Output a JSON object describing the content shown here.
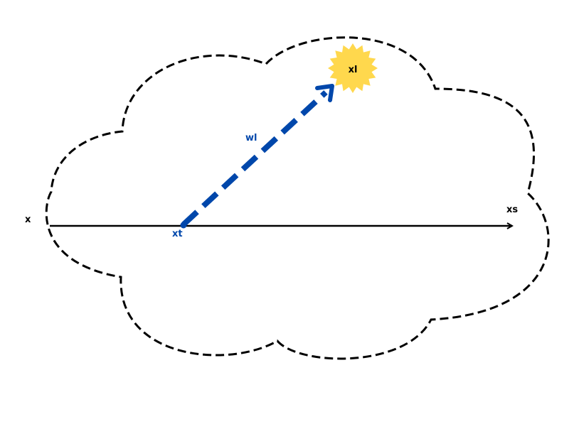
{
  "labels": {
    "x": "x",
    "xs": "xs",
    "xt": "xt",
    "wl": "wl",
    "xl": "xl"
  },
  "colors": {
    "outline": "#000000",
    "vector": "#0047AB",
    "star": "#FFD84D",
    "background": "#ffffff"
  }
}
